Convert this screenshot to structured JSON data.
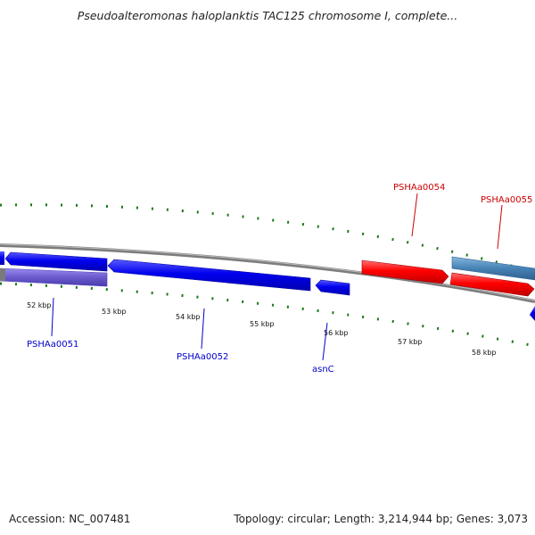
{
  "title": "Pseudoalteromonas haloplanktis TAC125 chromosome I, complete...",
  "footer": {
    "accession": "Accession: NC_007481",
    "summary": "Topology: circular; Length: 3,214,944 bp; Genes: 3,073"
  },
  "colors": {
    "forward_gene": "#ff0000",
    "reverse_gene": "#0000ee",
    "highlight_reverse": "#6a5acd",
    "highlight_forward": "#4682b4",
    "tick": "#1a7a1a",
    "backbone": "#808080"
  },
  "ticks": [
    "52 kbp",
    "53 kbp",
    "54 kbp",
    "55 kbp",
    "56 kbp",
    "57 kbp",
    "58 kbp"
  ],
  "genes": {
    "g0051": "PSHAa0051",
    "g0052": "PSHAa0052",
    "asnC": "asnC",
    "g0054": "PSHAa0054",
    "g0055": "PSHAa0055"
  }
}
